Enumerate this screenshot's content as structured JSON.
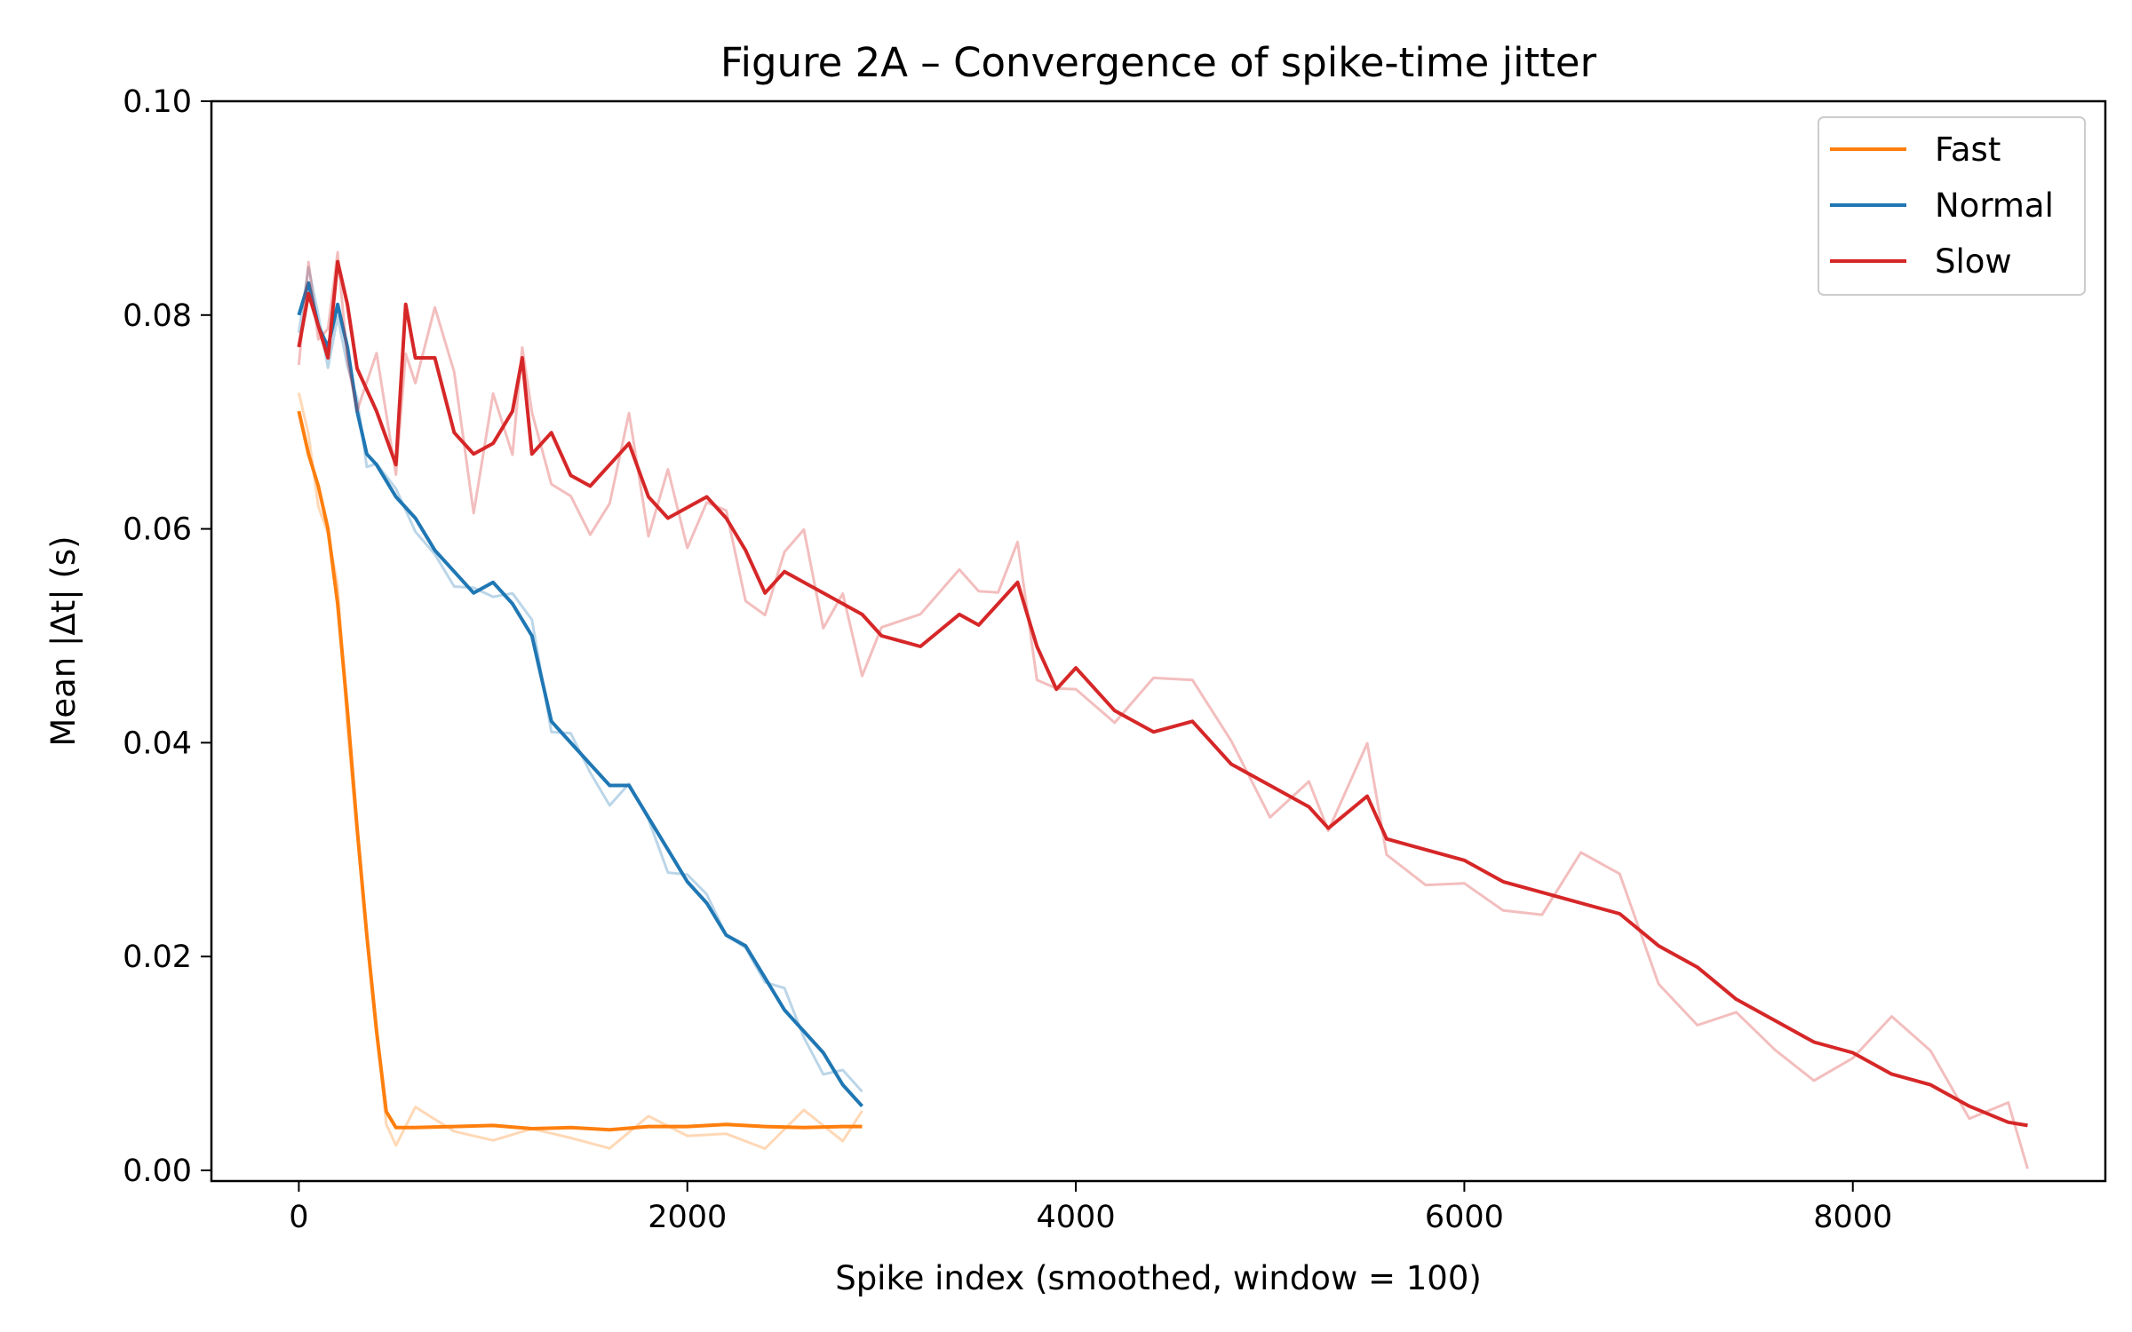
{
  "chart_data": {
    "type": "line",
    "title": "Figure 2A – Convergence of spike-time jitter",
    "xlabel": "Spike index (smoothed, window = 100)",
    "ylabel": "Mean |Δt|  (s)",
    "xlim": [
      -450,
      9300
    ],
    "ylim": [
      -0.001,
      0.1
    ],
    "xticks": [
      0,
      2000,
      4000,
      6000,
      8000
    ],
    "xtick_labels": [
      "0",
      "2000",
      "4000",
      "6000",
      "8000"
    ],
    "yticks": [
      0.0,
      0.02,
      0.04,
      0.06,
      0.08,
      0.1
    ],
    "ytick_labels": [
      "0.00",
      "0.02",
      "0.04",
      "0.06",
      "0.08",
      "0.10"
    ],
    "grid": false,
    "legend_position": "top-right",
    "series": [
      {
        "name": "Fast",
        "color": "#ff7f0e",
        "x": [
          0,
          50,
          100,
          150,
          200,
          250,
          300,
          350,
          400,
          450,
          500,
          600,
          800,
          1000,
          1200,
          1400,
          1600,
          1800,
          2000,
          2200,
          2400,
          2600,
          2800,
          2900
        ],
        "y": [
          0.071,
          0.067,
          0.064,
          0.06,
          0.053,
          0.043,
          0.032,
          0.022,
          0.013,
          0.0055,
          0.004,
          0.004,
          0.0041,
          0.0042,
          0.0039,
          0.004,
          0.0038,
          0.0041,
          0.0041,
          0.0043,
          0.0041,
          0.004,
          0.0041,
          0.0041
        ]
      },
      {
        "name": "Normal",
        "color": "#1f77b4",
        "x": [
          0,
          50,
          100,
          150,
          200,
          250,
          300,
          350,
          400,
          500,
          600,
          700,
          800,
          900,
          1000,
          1100,
          1200,
          1300,
          1400,
          1500,
          1600,
          1700,
          1800,
          1900,
          2000,
          2100,
          2200,
          2300,
          2400,
          2500,
          2600,
          2700,
          2800,
          2900
        ],
        "y": [
          0.08,
          0.083,
          0.079,
          0.077,
          0.081,
          0.077,
          0.071,
          0.067,
          0.066,
          0.063,
          0.061,
          0.058,
          0.056,
          0.054,
          0.055,
          0.053,
          0.05,
          0.042,
          0.04,
          0.038,
          0.036,
          0.036,
          0.033,
          0.03,
          0.027,
          0.025,
          0.022,
          0.021,
          0.018,
          0.015,
          0.013,
          0.011,
          0.008,
          0.006
        ]
      },
      {
        "name": "Slow",
        "color": "#d62728",
        "x": [
          0,
          50,
          100,
          150,
          200,
          250,
          300,
          400,
          500,
          550,
          600,
          700,
          800,
          900,
          1000,
          1100,
          1150,
          1200,
          1300,
          1400,
          1500,
          1600,
          1700,
          1800,
          1900,
          2000,
          2100,
          2200,
          2300,
          2400,
          2500,
          2600,
          2700,
          2800,
          2900,
          3000,
          3200,
          3400,
          3500,
          3600,
          3700,
          3800,
          3900,
          4000,
          4200,
          4400,
          4600,
          4800,
          5000,
          5200,
          5300,
          5500,
          5600,
          5800,
          6000,
          6200,
          6400,
          6600,
          6800,
          7000,
          7200,
          7400,
          7600,
          7800,
          8000,
          8200,
          8400,
          8600,
          8800,
          8900
        ],
        "y": [
          0.077,
          0.082,
          0.079,
          0.076,
          0.085,
          0.081,
          0.075,
          0.071,
          0.066,
          0.081,
          0.076,
          0.076,
          0.069,
          0.067,
          0.068,
          0.071,
          0.076,
          0.067,
          0.069,
          0.065,
          0.064,
          0.066,
          0.068,
          0.063,
          0.061,
          0.062,
          0.063,
          0.061,
          0.058,
          0.054,
          0.056,
          0.055,
          0.054,
          0.053,
          0.052,
          0.05,
          0.049,
          0.052,
          0.051,
          0.053,
          0.055,
          0.049,
          0.045,
          0.047,
          0.043,
          0.041,
          0.042,
          0.038,
          0.036,
          0.034,
          0.032,
          0.035,
          0.031,
          0.03,
          0.029,
          0.027,
          0.026,
          0.025,
          0.024,
          0.021,
          0.019,
          0.016,
          0.014,
          0.012,
          0.011,
          0.009,
          0.008,
          0.006,
          0.0045,
          0.0042
        ]
      }
    ]
  }
}
